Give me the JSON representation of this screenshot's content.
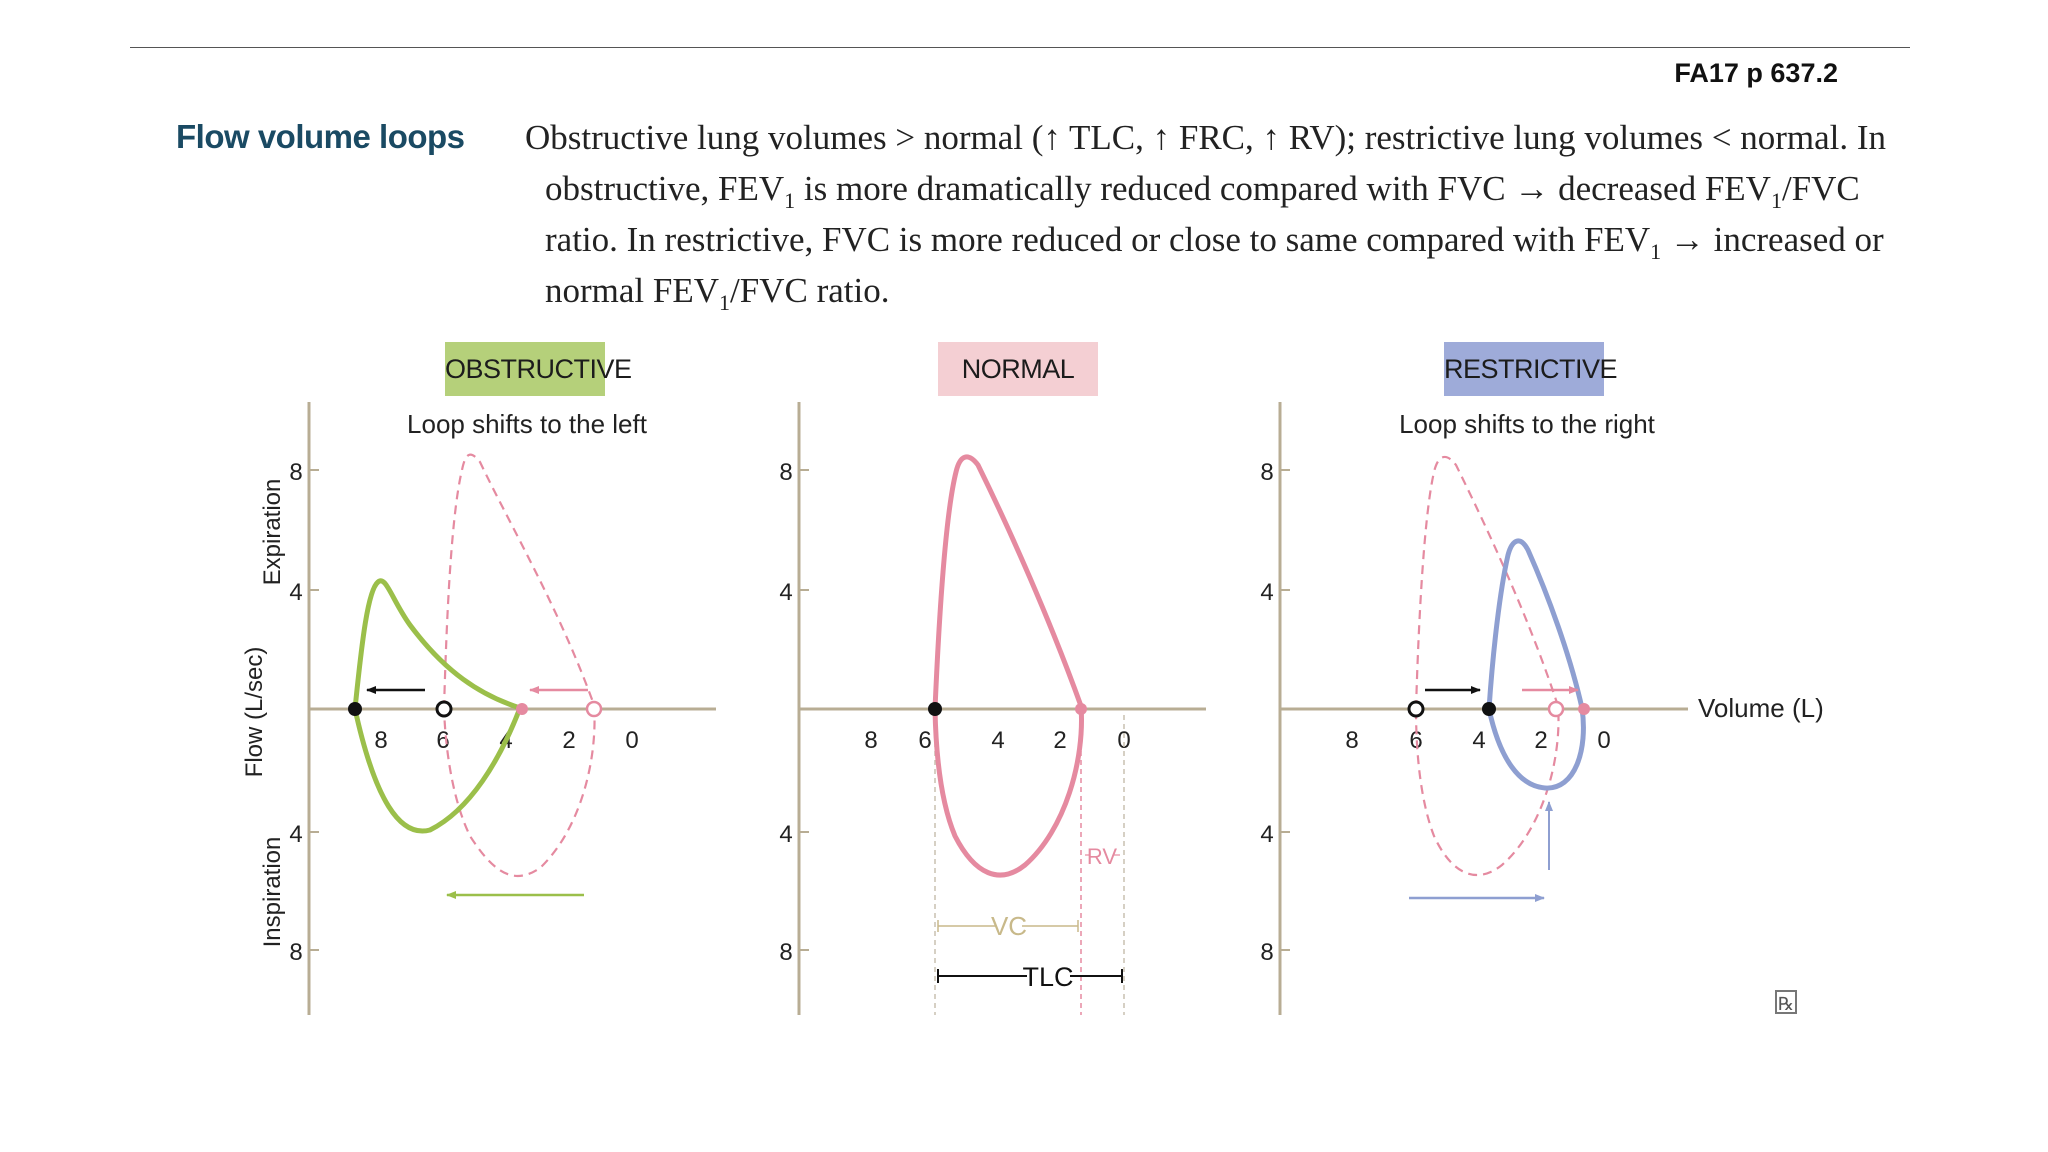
{
  "reference": "FA17 p 637.2",
  "heading": "Flow volume loops",
  "paragraph": {
    "l1": "Obstructive lung volumes > normal (↑ TLC, ↑ FRC, ↑ RV); restrictive lung volumes < normal. In",
    "l2a": "obstructive, FEV",
    "l2b": "1",
    "l2c": " is more dramatically reduced compared with FVC → decreased FEV",
    "l2d": "1",
    "l2e": "/FVC",
    "l3a": "ratio. In restrictive, FVC is more reduced or close to same compared with FEV",
    "l3b": "1",
    "l3c": " → increased or",
    "l4a": "normal FEV",
    "l4b": "1",
    "l4c": "/FVC ratio."
  },
  "colors": {
    "obstructive": "#9bbf4a",
    "obstructive_badge": "#b5d07a",
    "normal": "#e58aa0",
    "normal_badge": "#f4cfd3",
    "restrictive": "#8e9fd1",
    "restrictive_badge": "#9eabd9",
    "axis": "#b8ad94",
    "heading": "#1a4a63"
  },
  "panels": {
    "obstructive": {
      "title": "OBSTRUCTIVE",
      "subtitle": "Loop shifts to the left"
    },
    "normal": {
      "title": "NORMAL",
      "subtitle": ""
    },
    "restrictive": {
      "title": "RESTRICTIVE",
      "subtitle": "Loop shifts to the right"
    }
  },
  "axes": {
    "y_label": "Flow (L/sec)",
    "y_upper_label": "Expiration",
    "y_lower_label": "Inspiration",
    "x_label": "Volume (L)",
    "y_ticks": {
      "up8": "8",
      "up4": "4",
      "down4": "4",
      "down8": "8"
    },
    "x_ticks": {
      "t8": "8",
      "t6": "6",
      "t4": "4",
      "t2": "2",
      "t0": "0"
    }
  },
  "annotations": {
    "rv": "RV",
    "vc": "VC",
    "tlc": "TLC"
  },
  "rx_icon": "rx-icon"
}
